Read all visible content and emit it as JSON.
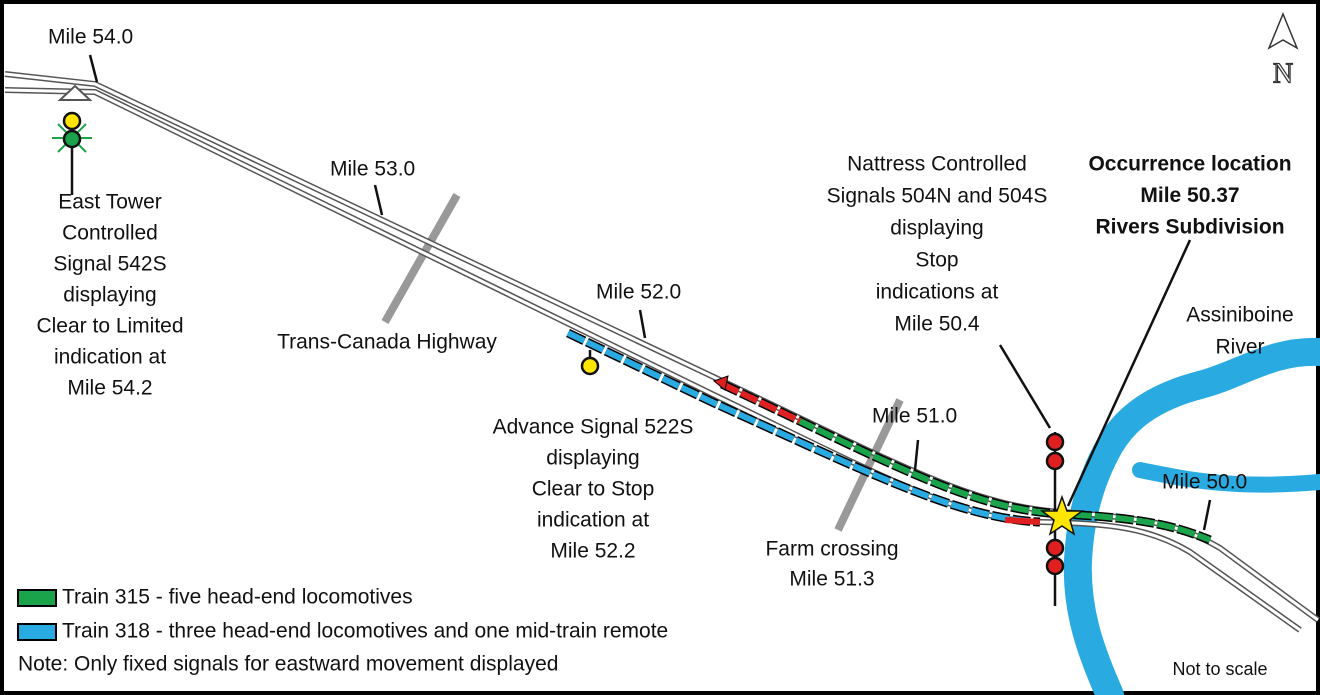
{
  "mile_markers": [
    "Mile 54.0",
    "Mile 53.0",
    "Mile 52.0",
    "Mile 51.0",
    "Mile 50.0"
  ],
  "labels": {
    "east_tower": [
      "East Tower",
      "Controlled",
      "Signal 542S",
      "displaying",
      "Clear to Limited",
      "indication at",
      "Mile 54.2"
    ],
    "highway": [
      "Trans-Canada Highway"
    ],
    "advance_signal": [
      "Advance Signal 522S",
      "displaying",
      "Clear to Stop",
      "indication at",
      "Mile 52.2"
    ],
    "nattress": [
      "Nattress Controlled",
      "Signals 504N and 504S",
      "displaying",
      "Stop",
      "indications at",
      "Mile 50.4"
    ],
    "occurrence": [
      "Occurrence location",
      "Mile 50.37",
      "Rivers Subdivision"
    ],
    "river": [
      "Assiniboine",
      "River"
    ],
    "farm_crossing": [
      "Farm crossing",
      "Mile 51.3"
    ]
  },
  "legend": [
    "Train 315 - five head-end locomotives",
    "Train 318 - three head-end locomotives and one mid-train remote"
  ],
  "note": "Note: Only fixed signals for eastward movement displayed",
  "scale_note": "Not to scale",
  "north": "N"
}
